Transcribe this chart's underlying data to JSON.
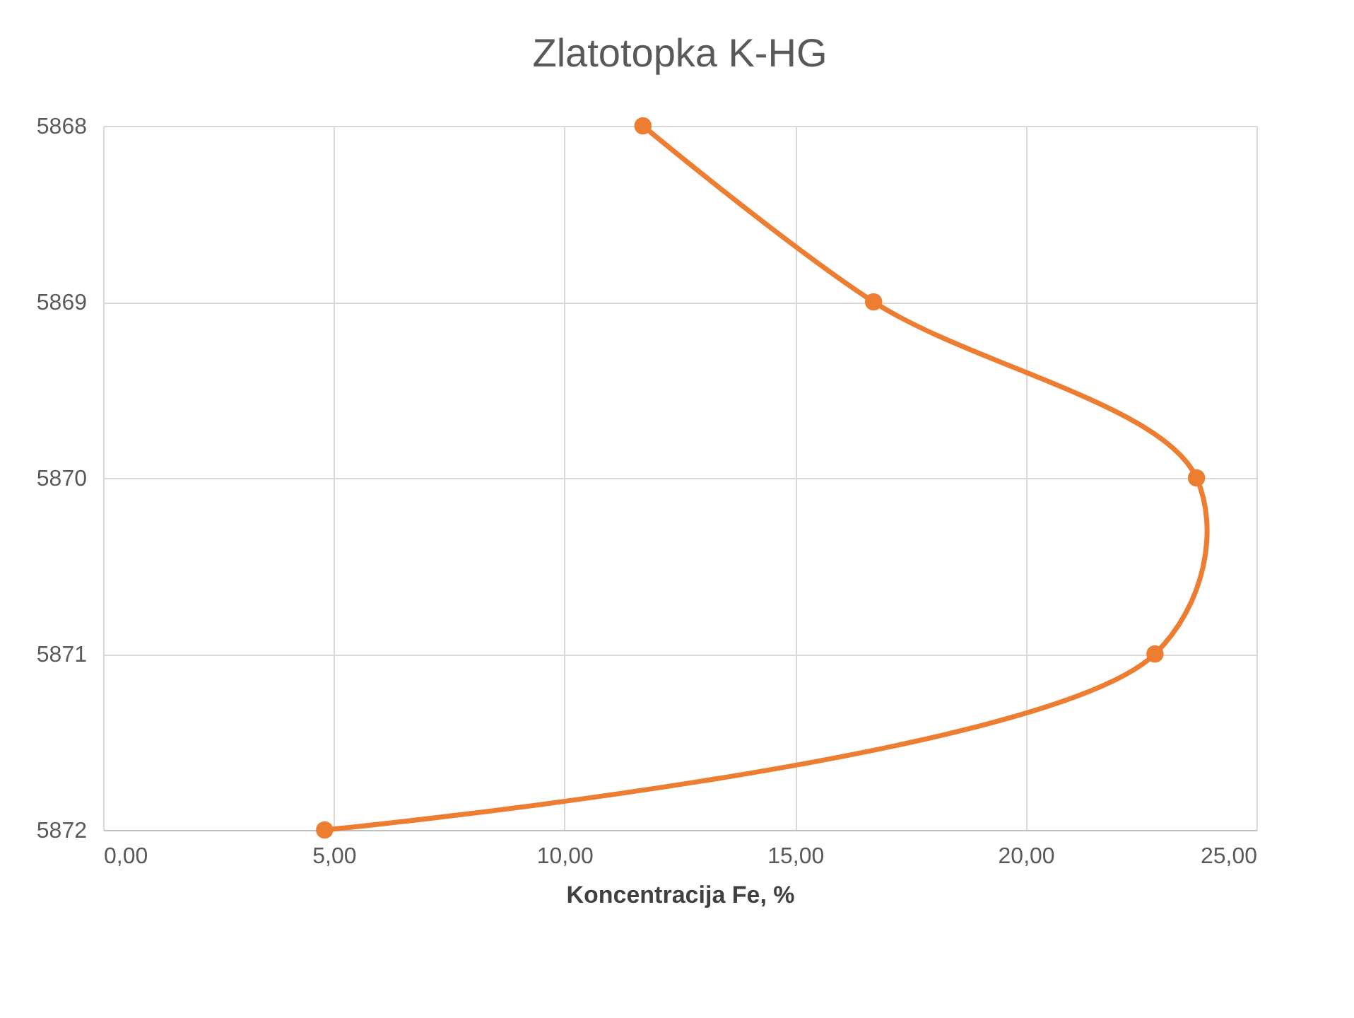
{
  "chart_data": {
    "type": "line",
    "title": "Zlatotopka K-HG",
    "xlabel": "Koncentracija Fe, %",
    "xlim": [
      0,
      25
    ],
    "xticks": [
      {
        "value": 0,
        "label": "0,00"
      },
      {
        "value": 5,
        "label": "5,00"
      },
      {
        "value": 10,
        "label": "10,00"
      },
      {
        "value": 15,
        "label": "15,00"
      },
      {
        "value": 20,
        "label": "20,00"
      },
      {
        "value": 25,
        "label": "25,00"
      }
    ],
    "ylim": [
      5872,
      5868
    ],
    "yticks": [
      5868,
      5869,
      5870,
      5871,
      5872
    ],
    "series": [
      {
        "color": "#ed7d31",
        "x": [
          11.7,
          16.7,
          23.7,
          22.8,
          4.8
        ],
        "values": [
          5868,
          5869,
          5870,
          5871,
          5872
        ]
      }
    ],
    "grid": true,
    "marker": "circle"
  }
}
